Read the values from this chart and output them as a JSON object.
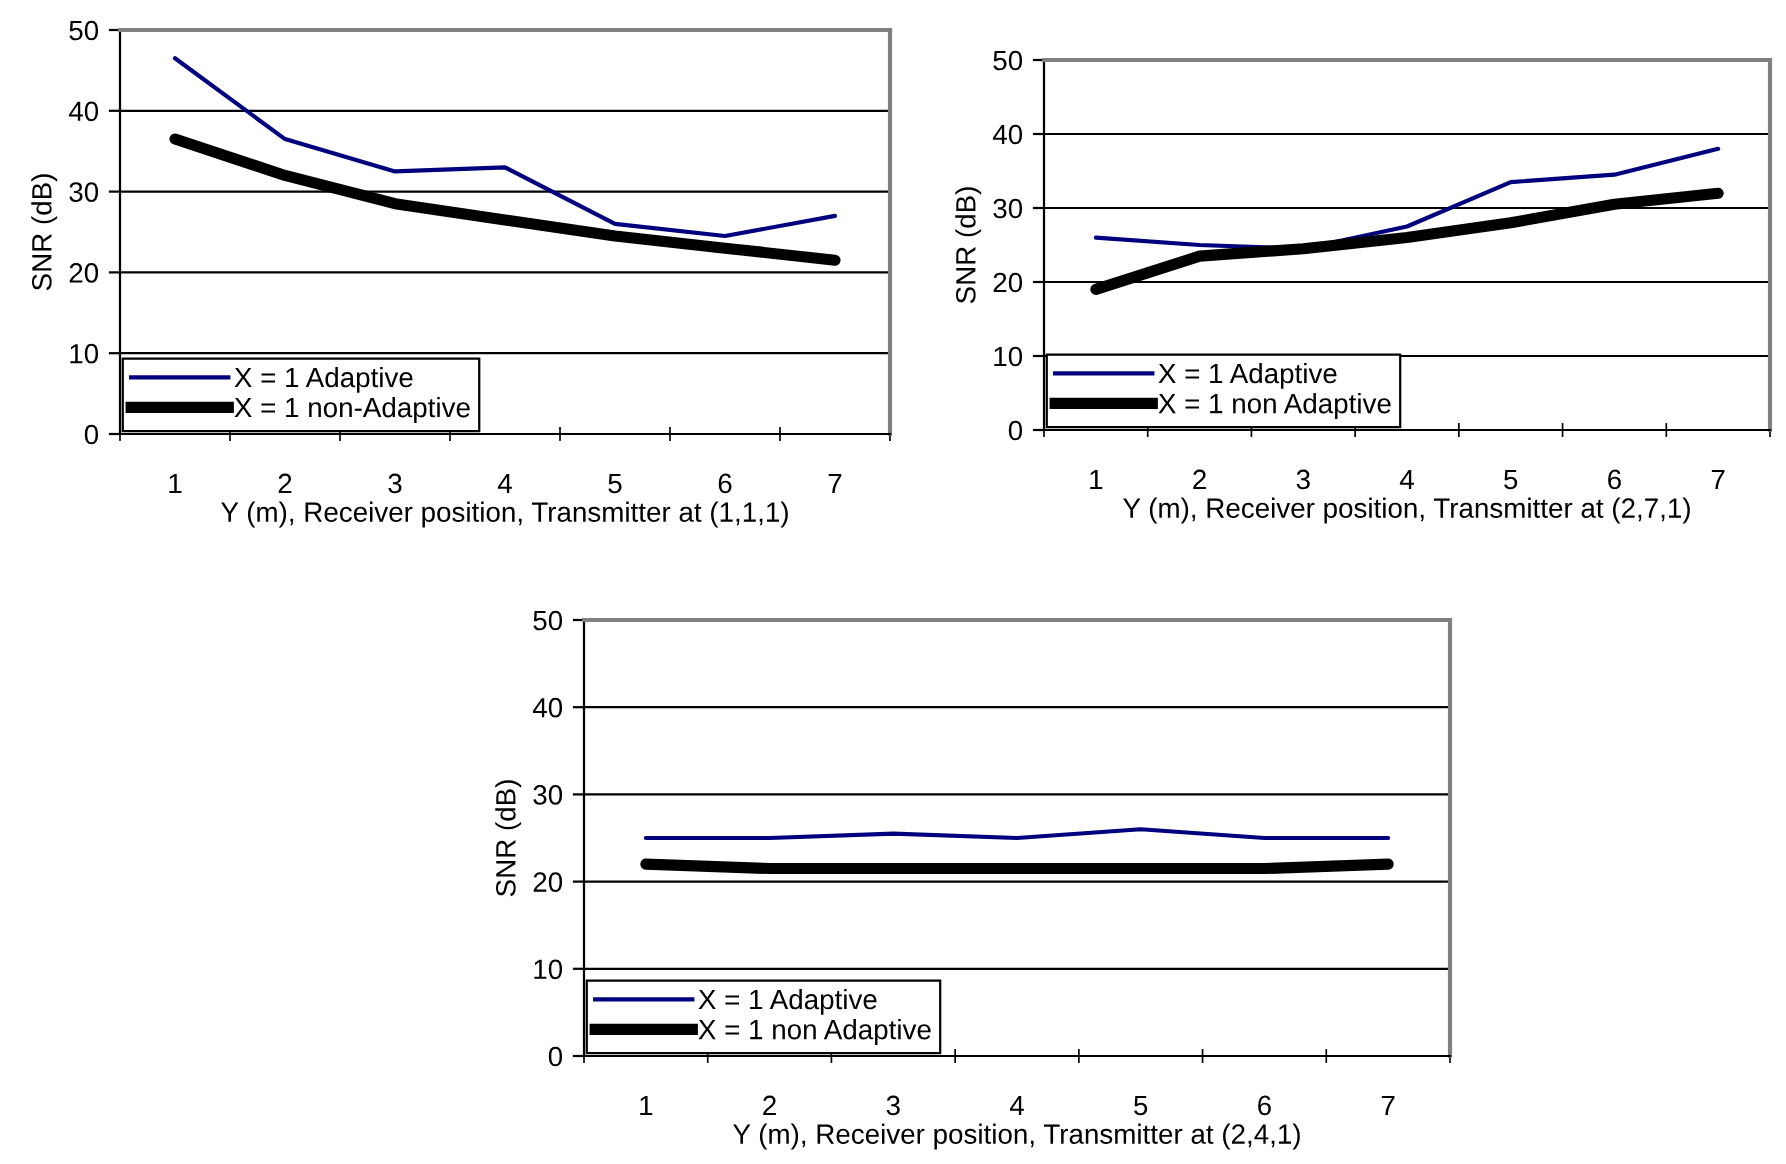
{
  "chart_data": [
    {
      "type": "line",
      "categories": [
        "1",
        "2",
        "3",
        "4",
        "5",
        "6",
        "7"
      ],
      "xlabel": "Y (m), Receiver position, Transmitter at (1,1,1)",
      "ylabel": "SNR (dB)",
      "ylim": [
        0,
        50
      ],
      "yticks": [
        0,
        10,
        20,
        30,
        40,
        50
      ],
      "grid": "y",
      "legend": "bottom left",
      "marker": "none",
      "line_style": "solid",
      "series": [
        {
          "name": "X = 1 Adaptive",
          "color": "#00007f",
          "values": [
            46.5,
            36.5,
            32.5,
            33,
            26,
            24.5,
            27
          ]
        },
        {
          "name": "X = 1 non-Adaptive",
          "color": "#000000",
          "values": [
            36.5,
            32,
            28.5,
            26.5,
            24.5,
            23,
            21.5
          ]
        }
      ]
    },
    {
      "type": "line",
      "categories": [
        "1",
        "2",
        "3",
        "4",
        "5",
        "6",
        "7"
      ],
      "xlabel": "Y (m), Receiver position, Transmitter at (2,7,1)",
      "ylabel": "SNR (dB)",
      "ylim": [
        0,
        50
      ],
      "yticks": [
        0,
        10,
        20,
        30,
        40,
        50
      ],
      "grid": "y",
      "legend": "bottom left",
      "marker": "none",
      "line_style": "solid",
      "series": [
        {
          "name": "X = 1 Adaptive",
          "color": "#00007f",
          "values": [
            26,
            25,
            24.5,
            27.5,
            33.5,
            34.5,
            38
          ]
        },
        {
          "name": "X = 1 non Adaptive",
          "color": "#000000",
          "values": [
            19,
            23.5,
            24.5,
            26,
            28,
            30.5,
            32
          ]
        }
      ]
    },
    {
      "type": "line",
      "categories": [
        "1",
        "2",
        "3",
        "4",
        "5",
        "6",
        "7"
      ],
      "xlabel": "Y (m), Receiver position, Transmitter at (2,4,1)",
      "ylabel": "SNR (dB)",
      "ylim": [
        0,
        50
      ],
      "yticks": [
        0,
        10,
        20,
        30,
        40,
        50
      ],
      "grid": "y",
      "legend": "bottom left",
      "marker": "none",
      "line_style": "solid",
      "series": [
        {
          "name": "X = 1 Adaptive",
          "color": "#00007f",
          "values": [
            25,
            25,
            25.5,
            25,
            26,
            25,
            25
          ]
        },
        {
          "name": "X = 1 non Adaptive",
          "color": "#000000",
          "values": [
            22,
            21.5,
            21.5,
            21.5,
            21.5,
            21.5,
            22
          ]
        }
      ]
    }
  ]
}
